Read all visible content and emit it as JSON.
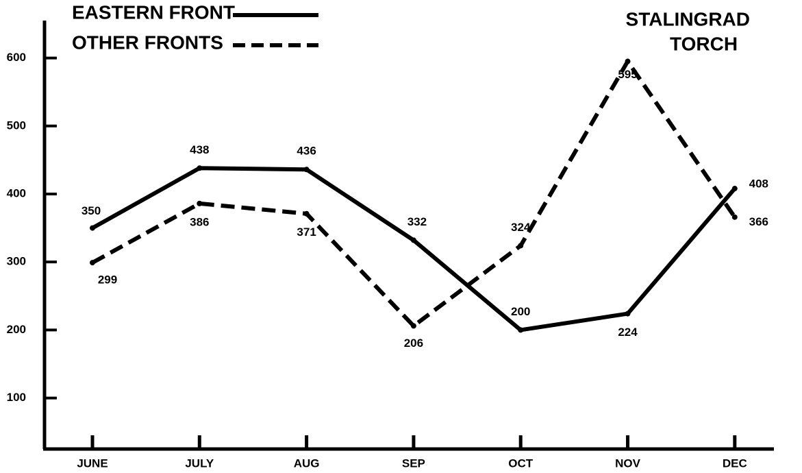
{
  "chart_data": {
    "type": "line",
    "categories": [
      "JUNE",
      "JULY",
      "AUG",
      "SEP",
      "OCT",
      "NOV",
      "DEC"
    ],
    "series": [
      {
        "name": "EASTERN FRONT",
        "color": "#000000",
        "dash": false,
        "values": [
          350,
          438,
          436,
          332,
          200,
          224,
          408
        ]
      },
      {
        "name": "OTHER FRONTS",
        "color": "#000000",
        "dash": true,
        "values": [
          299,
          386,
          371,
          206,
          324,
          595,
          366
        ]
      }
    ],
    "annotations": [
      "STALINGRAD",
      "TORCH"
    ],
    "ylim": [
      25,
      655
    ],
    "yticks": [
      100,
      200,
      300,
      400,
      500,
      600
    ]
  }
}
